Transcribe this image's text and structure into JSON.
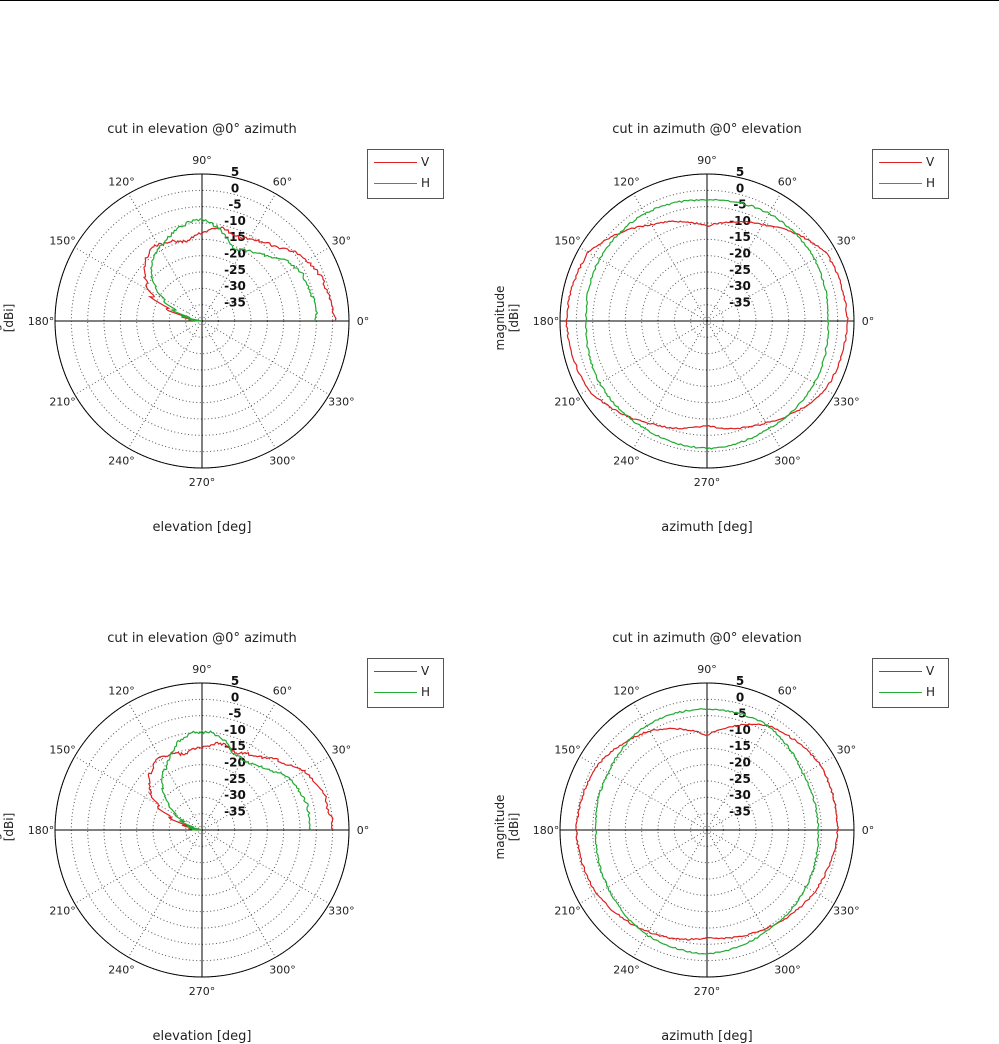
{
  "colors": {
    "V": "#dd2020",
    "H": "#22aa33"
  },
  "chart_data": [
    {
      "type": "polar",
      "title": "cut in elevation @0° azimuth",
      "xlabel": "elevation [deg]",
      "ylabel": "magnitude [dBi]",
      "angle_ticks": [
        "0°",
        "30°",
        "60°",
        "90°",
        "120°",
        "150°",
        "180°",
        "210°",
        "240°",
        "270°",
        "300°",
        "330°"
      ],
      "radial_ticks": [
        "5",
        "0",
        "-5",
        "-10",
        "-15",
        "-20",
        "-25",
        "-30",
        "-35"
      ],
      "rlim": [
        -40,
        5
      ],
      "legend": {
        "position": "top-right",
        "entries": [
          "V",
          "H"
        ]
      },
      "series": [
        {
          "name": "V",
          "angle_deg": [
            0,
            5,
            10,
            15,
            20,
            25,
            30,
            35,
            40,
            45,
            50,
            55,
            60,
            65,
            70,
            75,
            80,
            85,
            90,
            95,
            100,
            105,
            110,
            115,
            120,
            125,
            130,
            135,
            140,
            145,
            150,
            155,
            160,
            165,
            170,
            175,
            180
          ],
          "values": [
            1,
            0,
            0,
            -1,
            -1,
            -2,
            -3,
            -4,
            -6,
            -8,
            -9,
            -10,
            -11,
            -12,
            -12,
            -11,
            -11,
            -12,
            -13,
            -14,
            -15,
            -15,
            -14,
            -14,
            -13,
            -13,
            -14,
            -15,
            -17,
            -19,
            -21,
            -24,
            -28,
            -33,
            -37,
            -39,
            -40
          ]
        },
        {
          "name": "H",
          "angle_deg": [
            0,
            5,
            10,
            15,
            20,
            25,
            30,
            35,
            40,
            45,
            50,
            55,
            60,
            65,
            70,
            75,
            80,
            85,
            90,
            95,
            100,
            105,
            110,
            115,
            120,
            125,
            130,
            135,
            140,
            145,
            150,
            155,
            160,
            165,
            170,
            175,
            180
          ],
          "values": [
            -5,
            -5,
            -5,
            -6,
            -6,
            -6,
            -7,
            -8,
            -10,
            -12,
            -13,
            -14,
            -15,
            -16,
            -15,
            -13,
            -11,
            -10,
            -9,
            -9,
            -10,
            -11,
            -12,
            -13,
            -14,
            -15,
            -16,
            -18,
            -20,
            -23,
            -26,
            -29,
            -32,
            -35,
            -37,
            -39,
            -40
          ]
        }
      ]
    },
    {
      "type": "polar",
      "title": "cut in azimuth @0° elevation",
      "xlabel": "azimuth [deg]",
      "ylabel": "magnitude [dBi]",
      "angle_ticks": [
        "0°",
        "30°",
        "60°",
        "90°",
        "120°",
        "150°",
        "180°",
        "210°",
        "240°",
        "270°",
        "300°",
        "330°"
      ],
      "radial_ticks": [
        "5",
        "0",
        "-5",
        "-10",
        "-15",
        "-20",
        "-25",
        "-30",
        "-35"
      ],
      "rlim": [
        -40,
        5
      ],
      "legend": {
        "position": "top-right",
        "entries": [
          "V",
          "H"
        ]
      },
      "series": [
        {
          "name": "V",
          "angle_deg": [
            0,
            30,
            60,
            90,
            120,
            150,
            180,
            210,
            240,
            270,
            300,
            330,
            360
          ],
          "values": [
            3,
            2,
            -6,
            -11,
            -6,
            2,
            3,
            2,
            -4,
            -8,
            -4,
            2,
            3
          ]
        },
        {
          "name": "H",
          "angle_deg": [
            0,
            30,
            60,
            90,
            120,
            150,
            180,
            210,
            240,
            270,
            300,
            330,
            360
          ],
          "values": [
            -3,
            -2,
            -2,
            -3,
            -2,
            -2,
            -3,
            -2,
            -2,
            -1,
            -2,
            -2,
            -3
          ]
        }
      ]
    },
    {
      "type": "polar",
      "title": "cut in elevation @0° azimuth",
      "xlabel": "elevation [deg]",
      "ylabel": "magnitude [dBi]",
      "angle_ticks": [
        "0°",
        "30°",
        "60°",
        "90°",
        "120°",
        "150°",
        "180°",
        "210°",
        "240°",
        "270°",
        "300°",
        "330°"
      ],
      "radial_ticks": [
        "5",
        "0",
        "-5",
        "-10",
        "-15",
        "-20",
        "-25",
        "-30",
        "-35"
      ],
      "rlim": [
        -40,
        5
      ],
      "legend": {
        "position": "top-right",
        "entries": [
          "V",
          "H"
        ]
      },
      "series": [
        {
          "name": "V",
          "angle_deg": [
            0,
            5,
            10,
            15,
            20,
            25,
            30,
            35,
            40,
            45,
            50,
            55,
            60,
            65,
            70,
            75,
            80,
            85,
            90,
            95,
            100,
            105,
            110,
            115,
            120,
            125,
            130,
            135,
            140,
            145,
            150,
            155,
            160,
            165,
            170,
            175,
            180
          ],
          "values": [
            0,
            0,
            -1,
            -1,
            -2,
            -3,
            -4,
            -6,
            -8,
            -9,
            -11,
            -12,
            -13,
            -14,
            -14,
            -13,
            -13,
            -14,
            -15,
            -15,
            -16,
            -16,
            -15,
            -15,
            -14,
            -15,
            -16,
            -17,
            -19,
            -21,
            -24,
            -27,
            -31,
            -35,
            -38,
            -39,
            -40
          ]
        },
        {
          "name": "H",
          "angle_deg": [
            0,
            5,
            10,
            15,
            20,
            25,
            30,
            35,
            40,
            45,
            50,
            55,
            60,
            65,
            70,
            75,
            80,
            85,
            90,
            95,
            100,
            105,
            110,
            115,
            120,
            125,
            130,
            135,
            140,
            145,
            150,
            155,
            160,
            165,
            170,
            175,
            180
          ],
          "values": [
            -7,
            -7,
            -7,
            -7,
            -8,
            -8,
            -9,
            -10,
            -12,
            -13,
            -14,
            -15,
            -15,
            -15,
            -14,
            -12,
            -11,
            -10,
            -10,
            -10,
            -11,
            -12,
            -14,
            -16,
            -18,
            -19,
            -21,
            -23,
            -26,
            -28,
            -31,
            -33,
            -35,
            -37,
            -38,
            -39,
            -40
          ]
        }
      ]
    },
    {
      "type": "polar",
      "title": "cut in azimuth @0° elevation",
      "xlabel": "azimuth [deg]",
      "ylabel": "magnitude [dBi]",
      "angle_ticks": [
        "0°",
        "30°",
        "60°",
        "90°",
        "120°",
        "150°",
        "180°",
        "210°",
        "240°",
        "270°",
        "300°",
        "330°"
      ],
      "radial_ticks": [
        "5",
        "0",
        "-5",
        "-10",
        "-15",
        "-20",
        "-25",
        "-30",
        "-35"
      ],
      "rlim": [
        -40,
        5
      ],
      "legend": {
        "position": "top-right",
        "entries": [
          "V",
          "H"
        ]
      },
      "series": [
        {
          "name": "V",
          "angle_deg": [
            0,
            30,
            60,
            90,
            120,
            150,
            180,
            210,
            240,
            270,
            300,
            330,
            360
          ],
          "values": [
            0,
            0,
            -3,
            -11,
            -5,
            -1,
            0,
            -1,
            -4,
            -7,
            -5,
            -2,
            0
          ]
        },
        {
          "name": "H",
          "angle_deg": [
            0,
            30,
            60,
            90,
            120,
            150,
            180,
            210,
            240,
            270,
            300,
            330,
            360
          ],
          "values": [
            -6,
            -6,
            -3,
            -3,
            -3,
            -5,
            -6,
            -5,
            -3,
            -2,
            -4,
            -5,
            -6
          ]
        }
      ]
    }
  ]
}
